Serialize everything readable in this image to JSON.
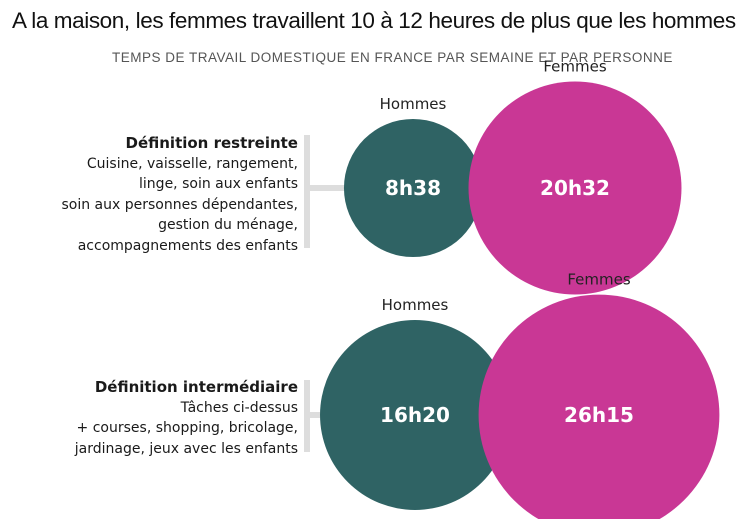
{
  "title": "A la maison, les femmes travaillent 10 à 12 heures de plus que les hommes",
  "subtitle": "TEMPS DE TRAVAIL DOMESTIQUE EN FRANCE PAR SEMAINE ET PAR PERSONNE",
  "colors": {
    "hommes": "#2f6364",
    "femmes": "#c93795",
    "connector": "#dddddd"
  },
  "chart_data": {
    "type": "bubble",
    "unit": "heures par semaine",
    "series_names": [
      "Hommes",
      "Femmes"
    ],
    "groups": [
      {
        "definition_title": "Définition restreinte",
        "definition_lines": [
          "Cuisine, vaisselle, rangement,",
          "linge, soin aux enfants",
          "soin aux personnes dépendantes,",
          "gestion du ménage,",
          "accompagnements des enfants"
        ],
        "values": [
          {
            "series": "Hommes",
            "label": "8h38",
            "hours": 8.633
          },
          {
            "series": "Femmes",
            "label": "20h32",
            "hours": 20.533
          }
        ]
      },
      {
        "definition_title": "Définition intermédiaire",
        "definition_lines": [
          "Tâches ci-dessus",
          "+ courses, shopping, bricolage,",
          "jardinage, jeux avec les enfants"
        ],
        "values": [
          {
            "series": "Hommes",
            "label": "16h20",
            "hours": 16.333
          },
          {
            "series": "Femmes",
            "label": "26h15",
            "hours": 26.25
          }
        ]
      }
    ]
  }
}
